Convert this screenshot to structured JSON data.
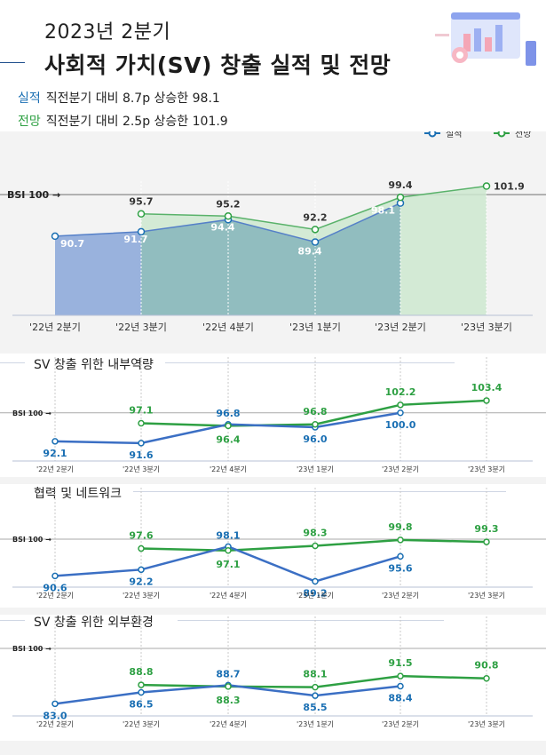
{
  "header": {
    "subtitle": "2023년 2분기",
    "title": "사회적 가치(SV) 창출 실적 및 전망",
    "actual_tag": "실적",
    "actual_text": "직전분기 대비 8.7p 상승한 98.1",
    "forecast_tag": "전망",
    "forecast_text": "직전분기 대비 2.5p 상승한 101.9"
  },
  "colors": {
    "actual": "#3b6fc4",
    "forecast": "#2ea043",
    "actual_label": "#1a6fb3",
    "forecast_label": "#2ea043",
    "area_actual": "#93aedb",
    "area_overlap": "#7fb1b8",
    "area_forecast": "#cde8cf",
    "bsi_line": "#9a9a9a"
  },
  "chart_data": [
    {
      "type": "area",
      "title": "",
      "categories": [
        "'22년 2분기",
        "'22년 3분기",
        "'22년 4분기",
        "'23년 1분기",
        "'23년 2분기",
        "'23년 3분기"
      ],
      "series": [
        {
          "name": "실적",
          "values": [
            90.7,
            91.7,
            94.4,
            89.4,
            98.1,
            null
          ]
        },
        {
          "name": "전망",
          "values": [
            null,
            95.7,
            95.2,
            92.2,
            99.4,
            101.9
          ]
        }
      ],
      "reference": {
        "label": "BSI 100 →",
        "value": 100
      },
      "legend": "top-right",
      "ylim": [
        73,
        103
      ]
    },
    {
      "type": "line",
      "title": "SV 창출 위한 내부역량",
      "categories": [
        "'22년 2분기",
        "'22년 3분기",
        "'22년 4분기",
        "'23년 1분기",
        "'23년 2분기",
        "'23년 3분기"
      ],
      "series": [
        {
          "name": "실적",
          "values": [
            92.1,
            91.6,
            96.8,
            96.0,
            100.0,
            null
          ]
        },
        {
          "name": "전망",
          "values": [
            null,
            97.1,
            96.4,
            96.8,
            102.2,
            103.4
          ]
        }
      ],
      "reference": {
        "label": "BSI 100 →",
        "value": 100
      }
    },
    {
      "type": "line",
      "title": "협력 및 네트워크",
      "categories": [
        "'22년 2분기",
        "'22년 3분기",
        "'22년 4분기",
        "'23년 1분기",
        "'23년 2분기",
        "'23년 3분기"
      ],
      "series": [
        {
          "name": "실적",
          "values": [
            90.6,
            92.2,
            98.1,
            89.2,
            95.6,
            null
          ]
        },
        {
          "name": "전망",
          "values": [
            null,
            97.6,
            97.1,
            98.3,
            99.8,
            99.3
          ]
        }
      ],
      "reference": {
        "label": "BSI 100 →",
        "value": 100
      }
    },
    {
      "type": "line",
      "title": "SV 창출 위한 외부환경",
      "categories": [
        "'22년 2분기",
        "'22년 3분기",
        "'22년 4분기",
        "'23년 1분기",
        "'23년 2분기",
        "'23년 3분기"
      ],
      "series": [
        {
          "name": "실적",
          "values": [
            83.0,
            86.5,
            88.7,
            85.5,
            88.4,
            null
          ]
        },
        {
          "name": "전망",
          "values": [
            null,
            88.8,
            88.3,
            88.1,
            91.5,
            90.8
          ]
        }
      ],
      "reference": {
        "label": "BSI 100 →",
        "value": 100
      }
    }
  ]
}
